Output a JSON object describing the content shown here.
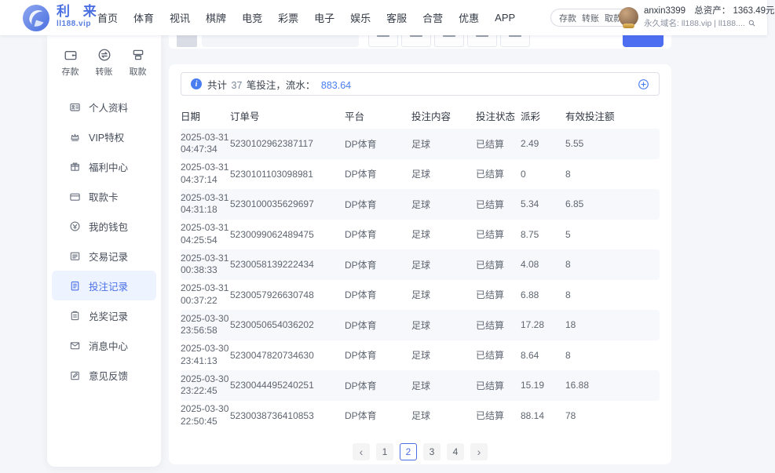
{
  "brand": {
    "name": "利 来",
    "domain": "ll188.vip"
  },
  "nav": {
    "items": [
      "首页",
      "体育",
      "视讯",
      "棋牌",
      "电竞",
      "彩票",
      "电子",
      "娱乐",
      "客服",
      "合营",
      "优惠",
      "APP"
    ]
  },
  "quick_pill": {
    "items": [
      "存款",
      "转账",
      "取款"
    ]
  },
  "user": {
    "name": "anxin3399",
    "assets_label": "总资产：",
    "assets_value": "1363.49元",
    "domain_line": "永久域名: ll188.vip | ll188...."
  },
  "sidebar": {
    "quick_actions": [
      {
        "label": "存款",
        "icon": "deposit-icon"
      },
      {
        "label": "转账",
        "icon": "transfer-icon"
      },
      {
        "label": "取款",
        "icon": "withdraw-icon"
      }
    ],
    "items": [
      {
        "label": "个人资料",
        "icon": "profile-icon",
        "active": false
      },
      {
        "label": "VIP特权",
        "icon": "vip-crown-icon",
        "active": false
      },
      {
        "label": "福利中心",
        "icon": "gift-icon",
        "active": false
      },
      {
        "label": "取款卡",
        "icon": "bank-card-icon",
        "active": false
      },
      {
        "label": "我的钱包",
        "icon": "wallet-icon",
        "active": false
      },
      {
        "label": "交易记录",
        "icon": "transactions-icon",
        "active": false
      },
      {
        "label": "投注记录",
        "icon": "bet-records-icon",
        "active": true
      },
      {
        "label": "兑奖记录",
        "icon": "redeem-icon",
        "active": false
      },
      {
        "label": "消息中心",
        "icon": "message-icon",
        "active": false
      },
      {
        "label": "意见反馈",
        "icon": "feedback-icon",
        "active": false
      }
    ]
  },
  "summary": {
    "prefix": "共计",
    "count": "37",
    "middle": "笔投注，流水：",
    "amount": "883.64"
  },
  "table": {
    "headers": [
      "日期",
      "订单号",
      "平台",
      "投注内容",
      "投注状态",
      "派彩",
      "有效投注额"
    ],
    "rows": [
      {
        "date": "2025-03-31",
        "time": "04:47:34",
        "order": "5230102962387117",
        "platform": "DP体育",
        "content": "足球",
        "status": "已结算",
        "payout": "2.49",
        "valid": "5.55"
      },
      {
        "date": "2025-03-31",
        "time": "04:37:14",
        "order": "5230101103098981",
        "platform": "DP体育",
        "content": "足球",
        "status": "已结算",
        "payout": "0",
        "valid": "8"
      },
      {
        "date": "2025-03-31",
        "time": "04:31:18",
        "order": "5230100035629697",
        "platform": "DP体育",
        "content": "足球",
        "status": "已结算",
        "payout": "5.34",
        "valid": "6.85"
      },
      {
        "date": "2025-03-31",
        "time": "04:25:54",
        "order": "5230099062489475",
        "platform": "DP体育",
        "content": "足球",
        "status": "已结算",
        "payout": "8.75",
        "valid": "5"
      },
      {
        "date": "2025-03-31",
        "time": "00:38:33",
        "order": "5230058139222434",
        "platform": "DP体育",
        "content": "足球",
        "status": "已结算",
        "payout": "4.08",
        "valid": "8"
      },
      {
        "date": "2025-03-31",
        "time": "00:37:22",
        "order": "5230057926630748",
        "platform": "DP体育",
        "content": "足球",
        "status": "已结算",
        "payout": "6.88",
        "valid": "8"
      },
      {
        "date": "2025-03-30",
        "time": "23:56:58",
        "order": "5230050654036202",
        "platform": "DP体育",
        "content": "足球",
        "status": "已结算",
        "payout": "17.28",
        "valid": "18"
      },
      {
        "date": "2025-03-30",
        "time": "23:41:13",
        "order": "5230047820734630",
        "platform": "DP体育",
        "content": "足球",
        "status": "已结算",
        "payout": "8.64",
        "valid": "8"
      },
      {
        "date": "2025-03-30",
        "time": "23:22:45",
        "order": "5230044495240251",
        "platform": "DP体育",
        "content": "足球",
        "status": "已结算",
        "payout": "15.19",
        "valid": "16.88"
      },
      {
        "date": "2025-03-30",
        "time": "22:50:45",
        "order": "5230038736410853",
        "platform": "DP体育",
        "content": "足球",
        "status": "已结算",
        "payout": "88.14",
        "valid": "78"
      }
    ]
  },
  "pagination": {
    "prev": "‹",
    "next": "›",
    "pages": [
      {
        "label": "1",
        "active": false
      },
      {
        "label": "2",
        "active": true
      },
      {
        "label": "3",
        "active": false
      },
      {
        "label": "4",
        "active": false
      }
    ]
  },
  "colors": {
    "accent": "#4e6ef2",
    "link_blue": "#4a7df0",
    "active_item_bg": "#edf3ff"
  }
}
